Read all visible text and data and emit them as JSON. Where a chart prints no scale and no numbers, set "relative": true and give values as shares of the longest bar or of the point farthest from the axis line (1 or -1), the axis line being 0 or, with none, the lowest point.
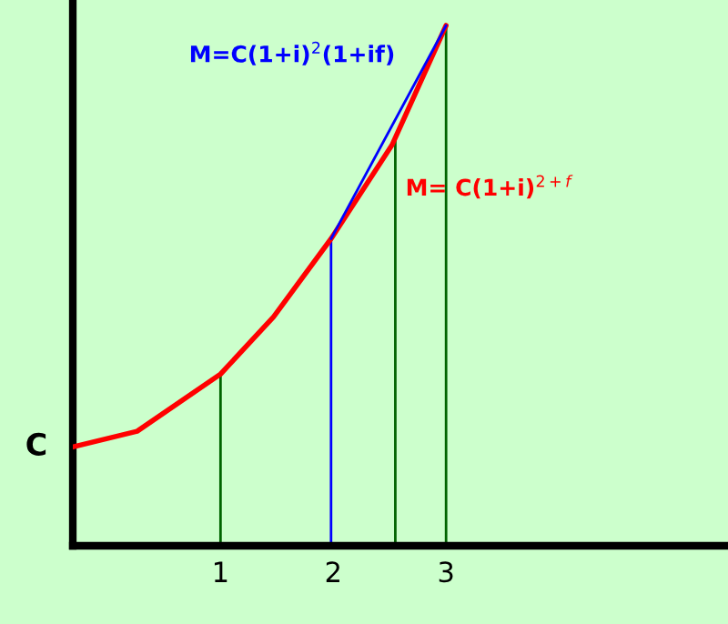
{
  "chart_data": {
    "type": "line",
    "relative": true,
    "xlim": [
      -0.31,
      5.5
    ],
    "xticks": [
      1,
      2,
      3
    ],
    "series": [
      {
        "name": "M= C(1+i)$^{2+f}$",
        "color": "#ff0000",
        "x": [
          -0.31,
          0.26,
          1,
          1.47,
          1.98,
          2.52,
          3
        ],
        "values": [
          0.19,
          0.22,
          0.33,
          0.44,
          0.59,
          0.77,
          1
        ]
      },
      {
        "name": "M=C(1+i)$^{2}$(1+if)",
        "color": "#0000ff",
        "x": [
          1.98,
          3
        ],
        "values": [
          0.59,
          1
        ]
      },
      {
        "color": "#006400",
        "x": [
          1,
          1
        ],
        "values": [
          0,
          0.33
        ]
      },
      {
        "color": "#0000ff",
        "x": [
          1.98,
          1.98
        ],
        "values": [
          0,
          0.59
        ]
      },
      {
        "color": "#006400",
        "x": [
          2.55,
          2.55
        ],
        "values": [
          0,
          0.78
        ]
      },
      {
        "color": "#006400",
        "x": [
          3,
          3
        ],
        "values": [
          0,
          1
        ]
      }
    ],
    "annotations": [
      {
        "text": "C",
        "x": -0.31,
        "y": 0.19
      }
    ],
    "grid": false,
    "legend": false
  }
}
